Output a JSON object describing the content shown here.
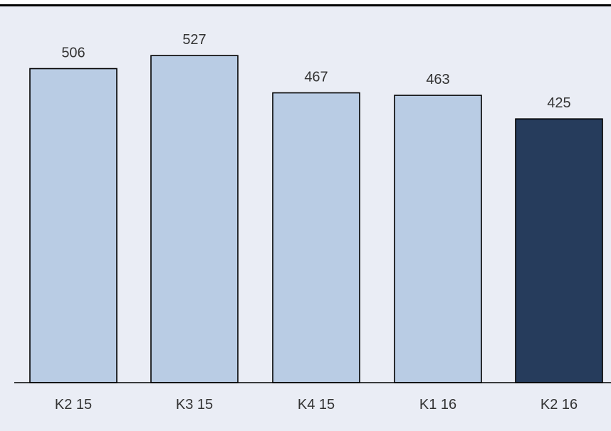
{
  "chart_data": {
    "type": "bar",
    "title": "",
    "xlabel": "",
    "ylabel": "",
    "categories": [
      "K2 15",
      "K3 15",
      "K4 15",
      "K1 16",
      "K2 16"
    ],
    "values": [
      506,
      527,
      467,
      463,
      425
    ],
    "ylim": [
      0,
      550
    ],
    "grid": false,
    "legend": "none",
    "colors": {
      "bar_default": "#b9cce4",
      "bar_highlight": "#263c5c",
      "bar_outline": "#000000",
      "background": "#eaedf5",
      "label_text": "#333333"
    },
    "highlight_index": 4
  }
}
